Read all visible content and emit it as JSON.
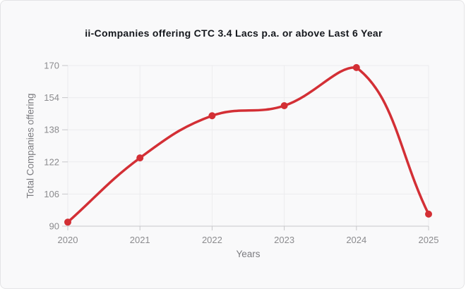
{
  "card": {
    "background": "#f9f9fa",
    "border_color": "#e4e4e6"
  },
  "chart_data": {
    "type": "line",
    "title": "ii-Companies offering CTC 3.4 Lacs p.a. or above Last 6 Year",
    "xlabel": "Years",
    "ylabel": "Total Companies offering",
    "categories": [
      "2020",
      "2021",
      "2022",
      "2023",
      "2024",
      "2025"
    ],
    "series": [
      {
        "name": "Total Companies offering",
        "values": [
          92,
          124,
          145,
          150,
          169,
          96
        ]
      }
    ],
    "ylim": [
      90,
      170
    ],
    "yticks": [
      90,
      106,
      122,
      138,
      154,
      170
    ],
    "grid": true,
    "curve": "smooth",
    "legend_position": "none",
    "line_color": "#d32f35",
    "point_color": "#d32f35",
    "axis_text_color": "#8b8b8e",
    "grid_color": "#ececee",
    "axis_line_color": "#c7c7ca"
  }
}
